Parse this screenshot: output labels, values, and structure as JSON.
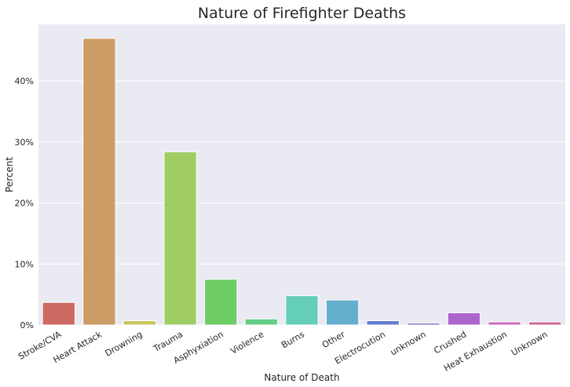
{
  "chart_data": {
    "type": "bar",
    "title": "Nature of Firefighter Deaths",
    "xlabel": "Nature of Death",
    "ylabel": "Percent",
    "categories": [
      "Stroke/CVA",
      "Heart Attack",
      "Drowning",
      "Trauma",
      "Asphyxiation",
      "Violence",
      "Burns",
      "Other",
      "Electrocution",
      "unknown",
      "Crushed",
      "Heat Exhaustion",
      "Unknown"
    ],
    "values": [
      3.7,
      47.0,
      0.7,
      28.4,
      7.5,
      1.0,
      4.8,
      4.1,
      0.7,
      0.3,
      2.0,
      0.5,
      0.5
    ],
    "colors": [
      "#cd6a62",
      "#cd9b65",
      "#c9c65d",
      "#a1cd65",
      "#6ecd65",
      "#65cd86",
      "#65ceb9",
      "#65afce",
      "#657dce",
      "#7d65ce",
      "#ae65ce",
      "#cd65c1",
      "#cd6591"
    ],
    "ylim": [
      0,
      49.3
    ],
    "yticks": [
      0,
      10,
      20,
      30,
      40
    ],
    "ytick_labels": [
      "0%",
      "10%",
      "20%",
      "30%",
      "40%"
    ],
    "grid": true,
    "background_color": "#eaeaf2"
  }
}
